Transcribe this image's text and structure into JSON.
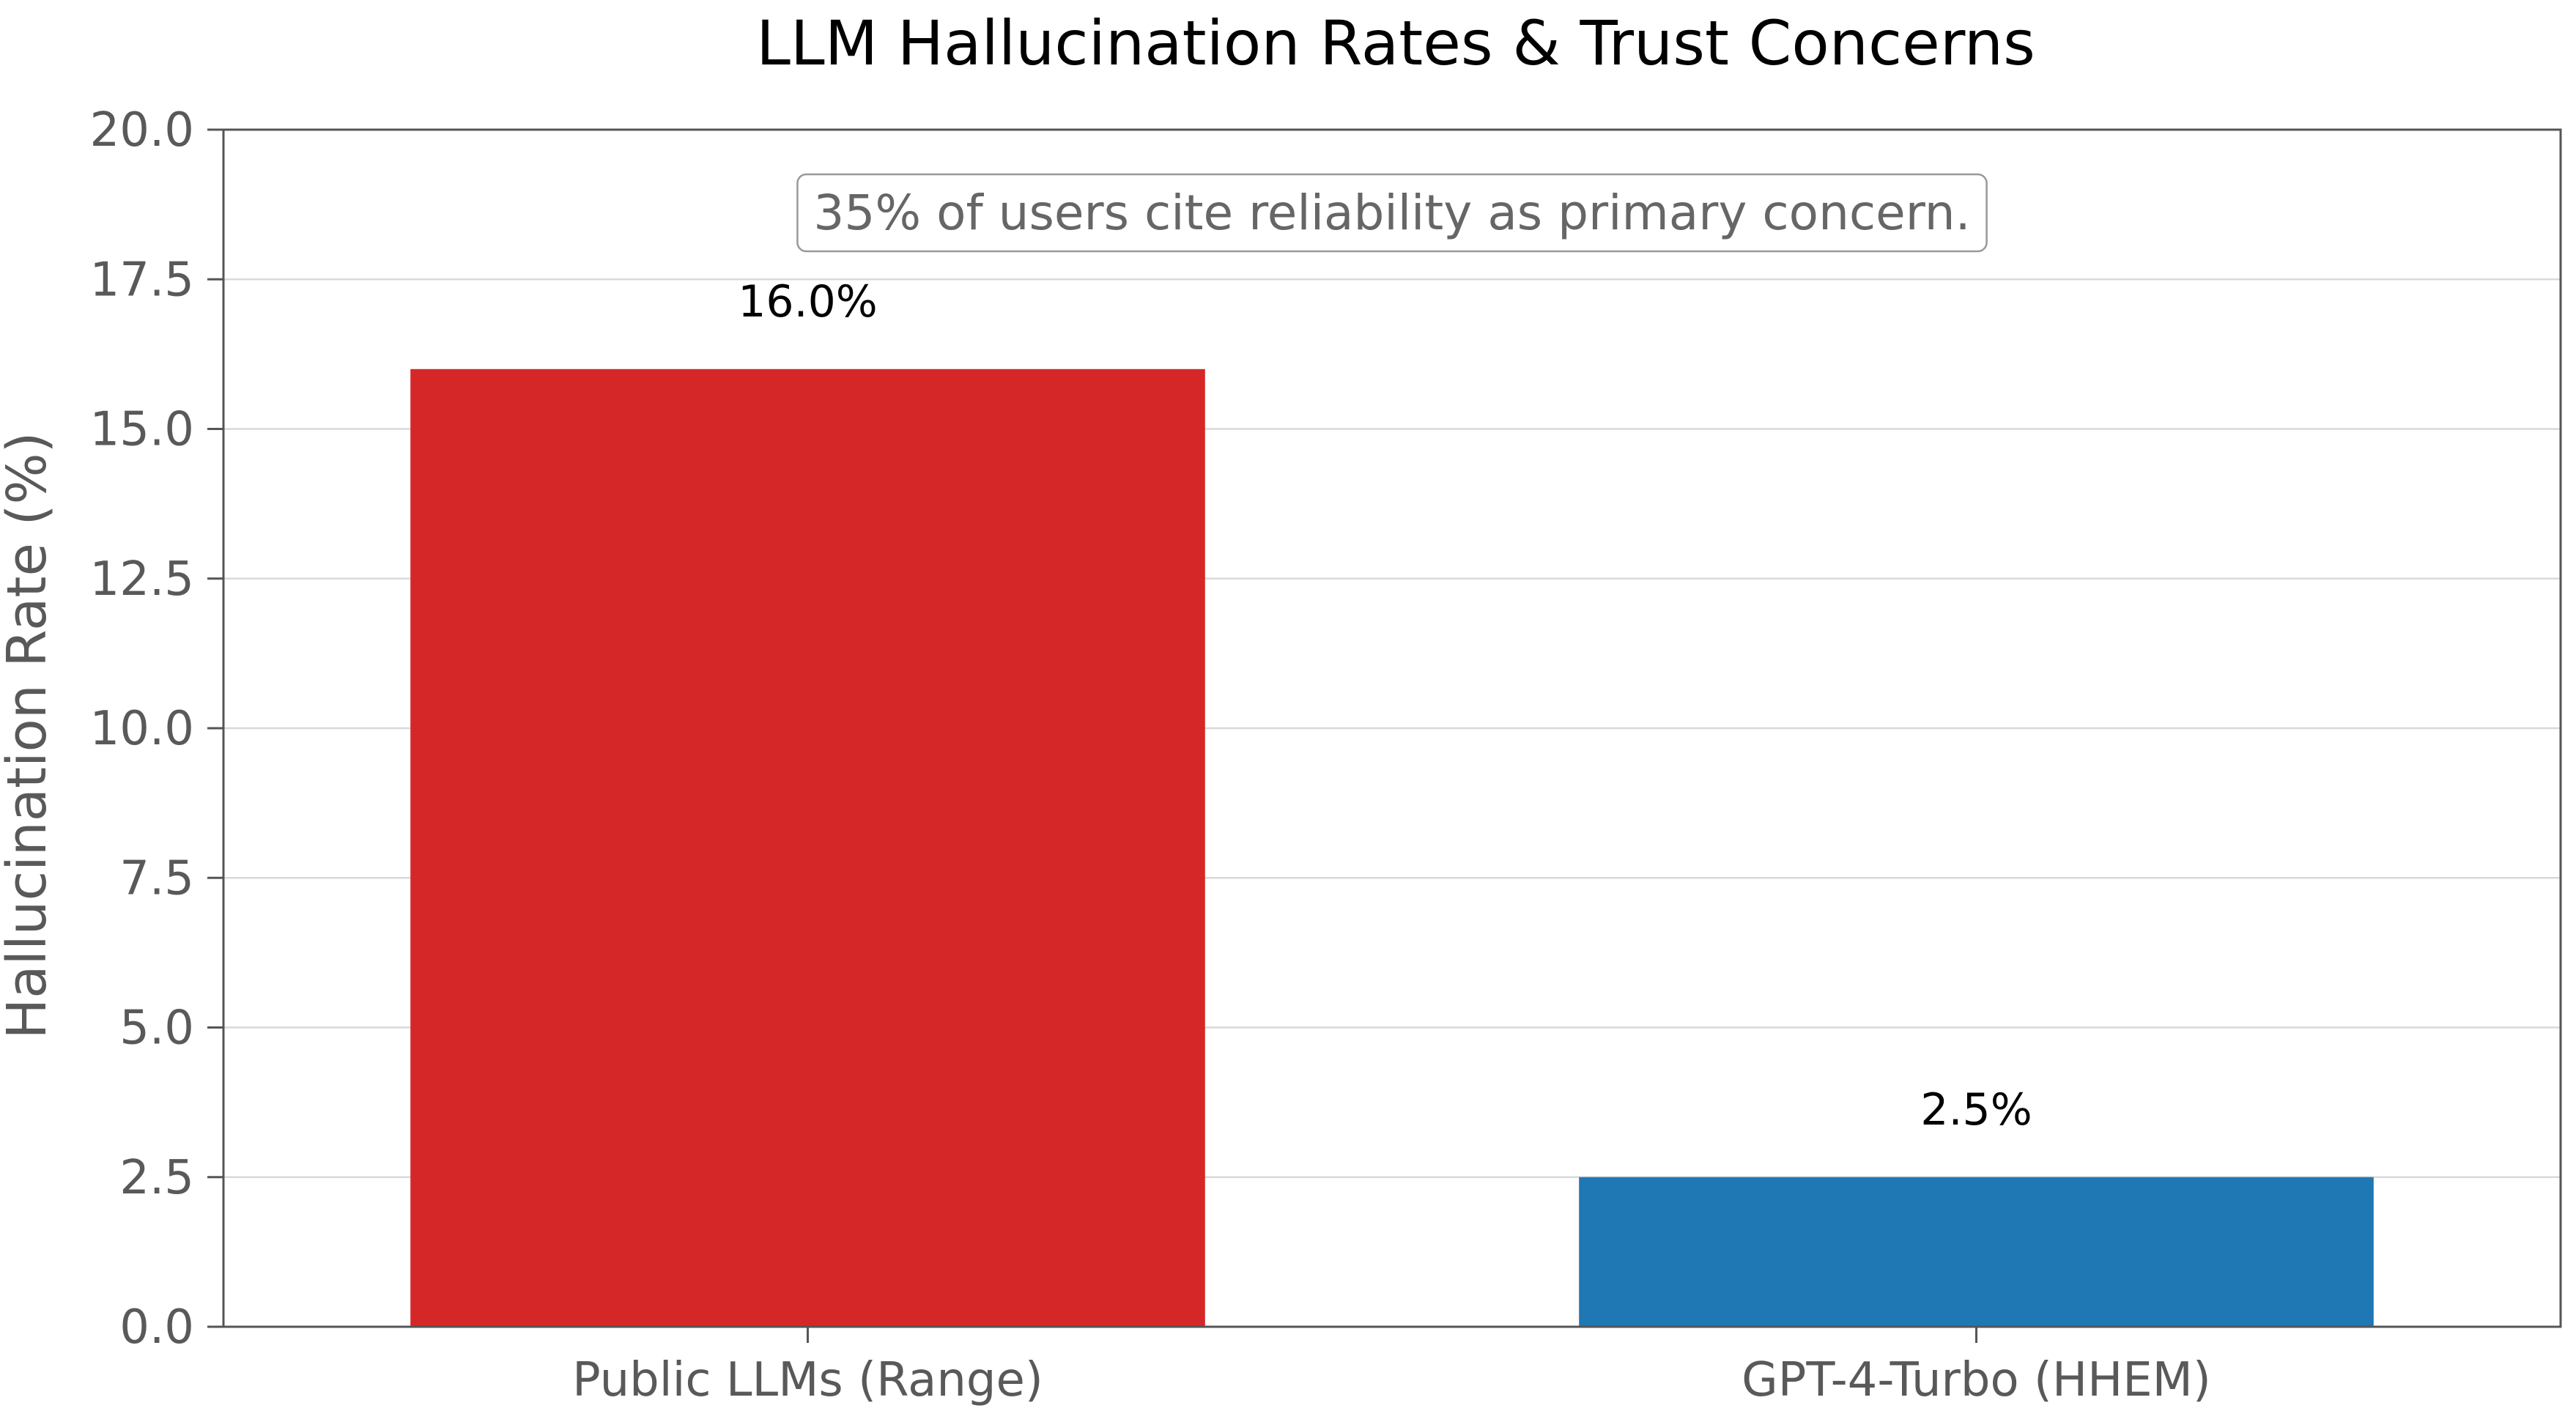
{
  "chart_data": {
    "type": "bar",
    "title": "LLM Hallucination Rates & Trust Concerns",
    "xlabel": "",
    "ylabel": "Hallucination Rate (%)",
    "ylim": [
      0,
      20
    ],
    "yticks": [
      "0.0",
      "2.5",
      "5.0",
      "7.5",
      "10.0",
      "12.5",
      "15.0",
      "17.5",
      "20.0"
    ],
    "categories": [
      "Public LLMs (Range)",
      "GPT-4-Turbo (HHEM)"
    ],
    "values": [
      16.0,
      2.5
    ],
    "value_labels": [
      "16.0%",
      "2.5%"
    ],
    "colors": [
      "#d62728",
      "#1f77b4"
    ],
    "grid": "horizontal",
    "annotation": "35% of users cite reliability as primary concern."
  }
}
